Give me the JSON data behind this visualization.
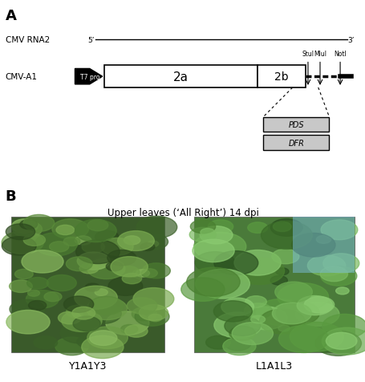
{
  "panel_a_label": "A",
  "panel_b_label": "B",
  "cmv_rna2_label": "CMV RNA2",
  "cmv_a1_label": "CMV-A1",
  "five_prime": "5’",
  "three_prime": "3’",
  "t7_label": "T7 pro",
  "gene_2a_label": "2a",
  "gene_2b_label": "2b",
  "stui_label": "StuI",
  "mlui_label": "MluI",
  "noti_label": "NotI",
  "pds_label": "PDS",
  "dfr_label": "DFR",
  "upper_leaves_title": "Upper leaves (‘All Right’) 14 dpi",
  "y1a1y3_label": "Y1A1Y3",
  "l1a1l3_label": "L1A1L3",
  "bg_color": "#ffffff",
  "diagram_color": "#000000",
  "gene_box_color": "#ffffff",
  "insert_box_color": "#c8c8c8",
  "t7_fill": "#000000"
}
